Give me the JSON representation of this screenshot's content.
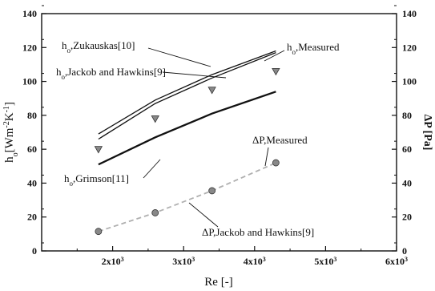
{
  "chart_data": {
    "type": "line",
    "xlabel": "Re [-]",
    "ylabel_left": "h_o[Wm^-2K^-1]",
    "ylabel_right": "ΔP [Pa]",
    "xlim": [
      1000,
      6000
    ],
    "ylim": [
      0,
      140
    ],
    "ylim_right": [
      0,
      140
    ],
    "x_ticks": [
      {
        "value": 2000,
        "mant": "2x10",
        "exp": "3"
      },
      {
        "value": 3000,
        "mant": "3x10",
        "exp": "3"
      },
      {
        "value": 4000,
        "mant": "4x10",
        "exp": "3"
      },
      {
        "value": 5000,
        "mant": "5x10",
        "exp": "3"
      },
      {
        "value": 6000,
        "mant": "6x10",
        "exp": "3"
      }
    ],
    "y_ticks": [
      "0",
      "20",
      "40",
      "60",
      "80",
      "100",
      "120",
      "140"
    ],
    "y_ticks_right": [
      "0",
      "20",
      "40",
      "60",
      "80",
      "100",
      "120",
      "140"
    ],
    "series": [
      {
        "name": "h_o,Zukauskas[10]",
        "axis": "left",
        "style": "line-thin",
        "color": "#111111",
        "x": [
          1800,
          2600,
          3400,
          4300
        ],
        "y": [
          69,
          89,
          104,
          118
        ]
      },
      {
        "name": "h_o,Jackob and Hawkins[9]",
        "axis": "left",
        "style": "line-thin",
        "color": "#111111",
        "x": [
          1800,
          2600,
          3400,
          4300
        ],
        "y": [
          66,
          87,
          102,
          117
        ]
      },
      {
        "name": "h_o,Grimson[11]",
        "axis": "left",
        "style": "line-thick",
        "color": "#111111",
        "x": [
          1800,
          2600,
          3400,
          4300
        ],
        "y": [
          51,
          67,
          81,
          94
        ]
      },
      {
        "name": "h_o,Measured",
        "axis": "left",
        "style": "marker-triangle",
        "color": "#888888",
        "x": [
          1800,
          2600,
          3400,
          4300
        ],
        "y": [
          60,
          78,
          95,
          106
        ]
      },
      {
        "name": "ΔP,Measured",
        "axis": "right",
        "style": "marker-circle",
        "color": "#888888",
        "x": [
          1800,
          2600,
          3400,
          4300
        ],
        "y": [
          11.5,
          22.5,
          35.5,
          52
        ]
      },
      {
        "name": "ΔP,Jackob and Hawkins[9]",
        "axis": "right",
        "style": "line-dashed",
        "color": "#b0b0b0",
        "x": [
          1800,
          2600,
          3400,
          4300
        ],
        "y": [
          11.5,
          22.5,
          35.5,
          52
        ]
      }
    ],
    "annotations": [
      {
        "key": "zukauskas",
        "prefix": "h",
        "sub": "o",
        "text": ",Zukauskas[10]"
      },
      {
        "key": "jackob_h",
        "prefix": "h",
        "sub": "o",
        "text": ",Jackob and Hawkins[9]"
      },
      {
        "key": "measured_h",
        "prefix": "h",
        "sub": "o",
        "text": ",Measured"
      },
      {
        "key": "grimson",
        "prefix": "h",
        "sub": "o",
        "text": ",Grimson[11]"
      },
      {
        "key": "dp_measured",
        "prefix": "ΔP",
        "sub": "",
        "text": ",Measured"
      },
      {
        "key": "dp_jackob",
        "prefix": "ΔP",
        "sub": "",
        "text": ",Jackob and Hawkins[9]"
      }
    ],
    "grid": false,
    "legend": "none"
  }
}
